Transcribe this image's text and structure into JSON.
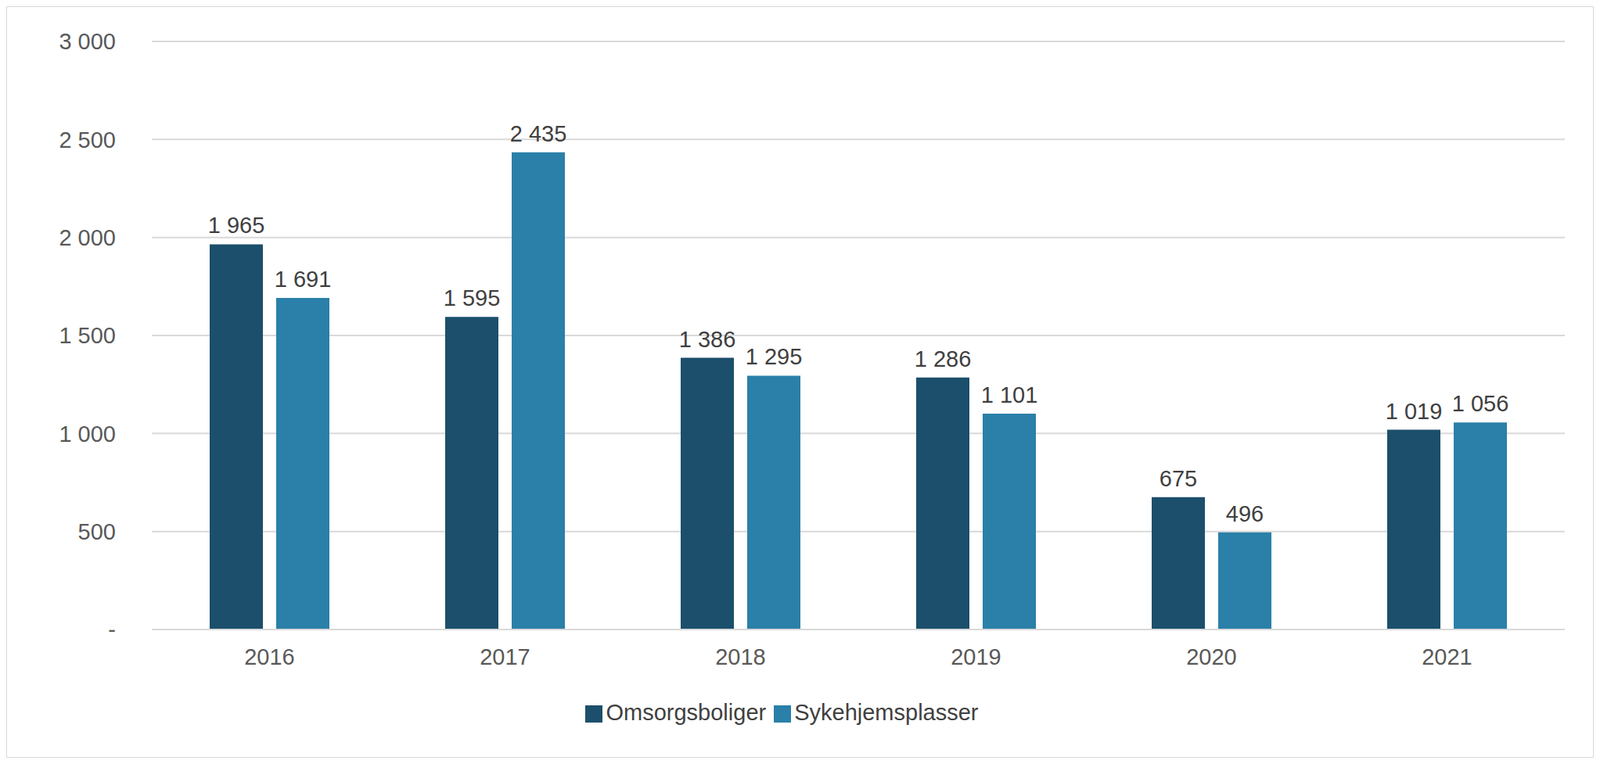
{
  "chart_data": {
    "type": "bar",
    "categories": [
      "2016",
      "2017",
      "2018",
      "2019",
      "2020",
      "2021"
    ],
    "series": [
      {
        "name": "Omsorgsboliger",
        "color": "#1b4f6b",
        "values": [
          1965,
          1595,
          1386,
          1286,
          675,
          1019
        ],
        "value_labels": [
          "1 965",
          "1 595",
          "1 386",
          "1 286",
          "675",
          "1 019"
        ]
      },
      {
        "name": "Sykehjemsplasser",
        "color": "#2a80a8",
        "values": [
          1691,
          2435,
          1295,
          1101,
          496,
          1056
        ],
        "value_labels": [
          "1 691",
          "2 435",
          "1 295",
          "1 101",
          "496",
          "1 056"
        ]
      }
    ],
    "ylim": [
      0,
      3000
    ],
    "yticks": [
      {
        "value": 0,
        "label": "-"
      },
      500,
      {
        "value": 1000,
        "label": "1 000"
      },
      {
        "value": 1500,
        "label": "1 500"
      },
      {
        "value": 2000,
        "label": "2 000"
      },
      {
        "value": 2500,
        "label": "2 500"
      },
      {
        "value": 3000,
        "label": "3 000"
      }
    ],
    "grid": true,
    "legend": "bottom",
    "data_labels": true
  }
}
